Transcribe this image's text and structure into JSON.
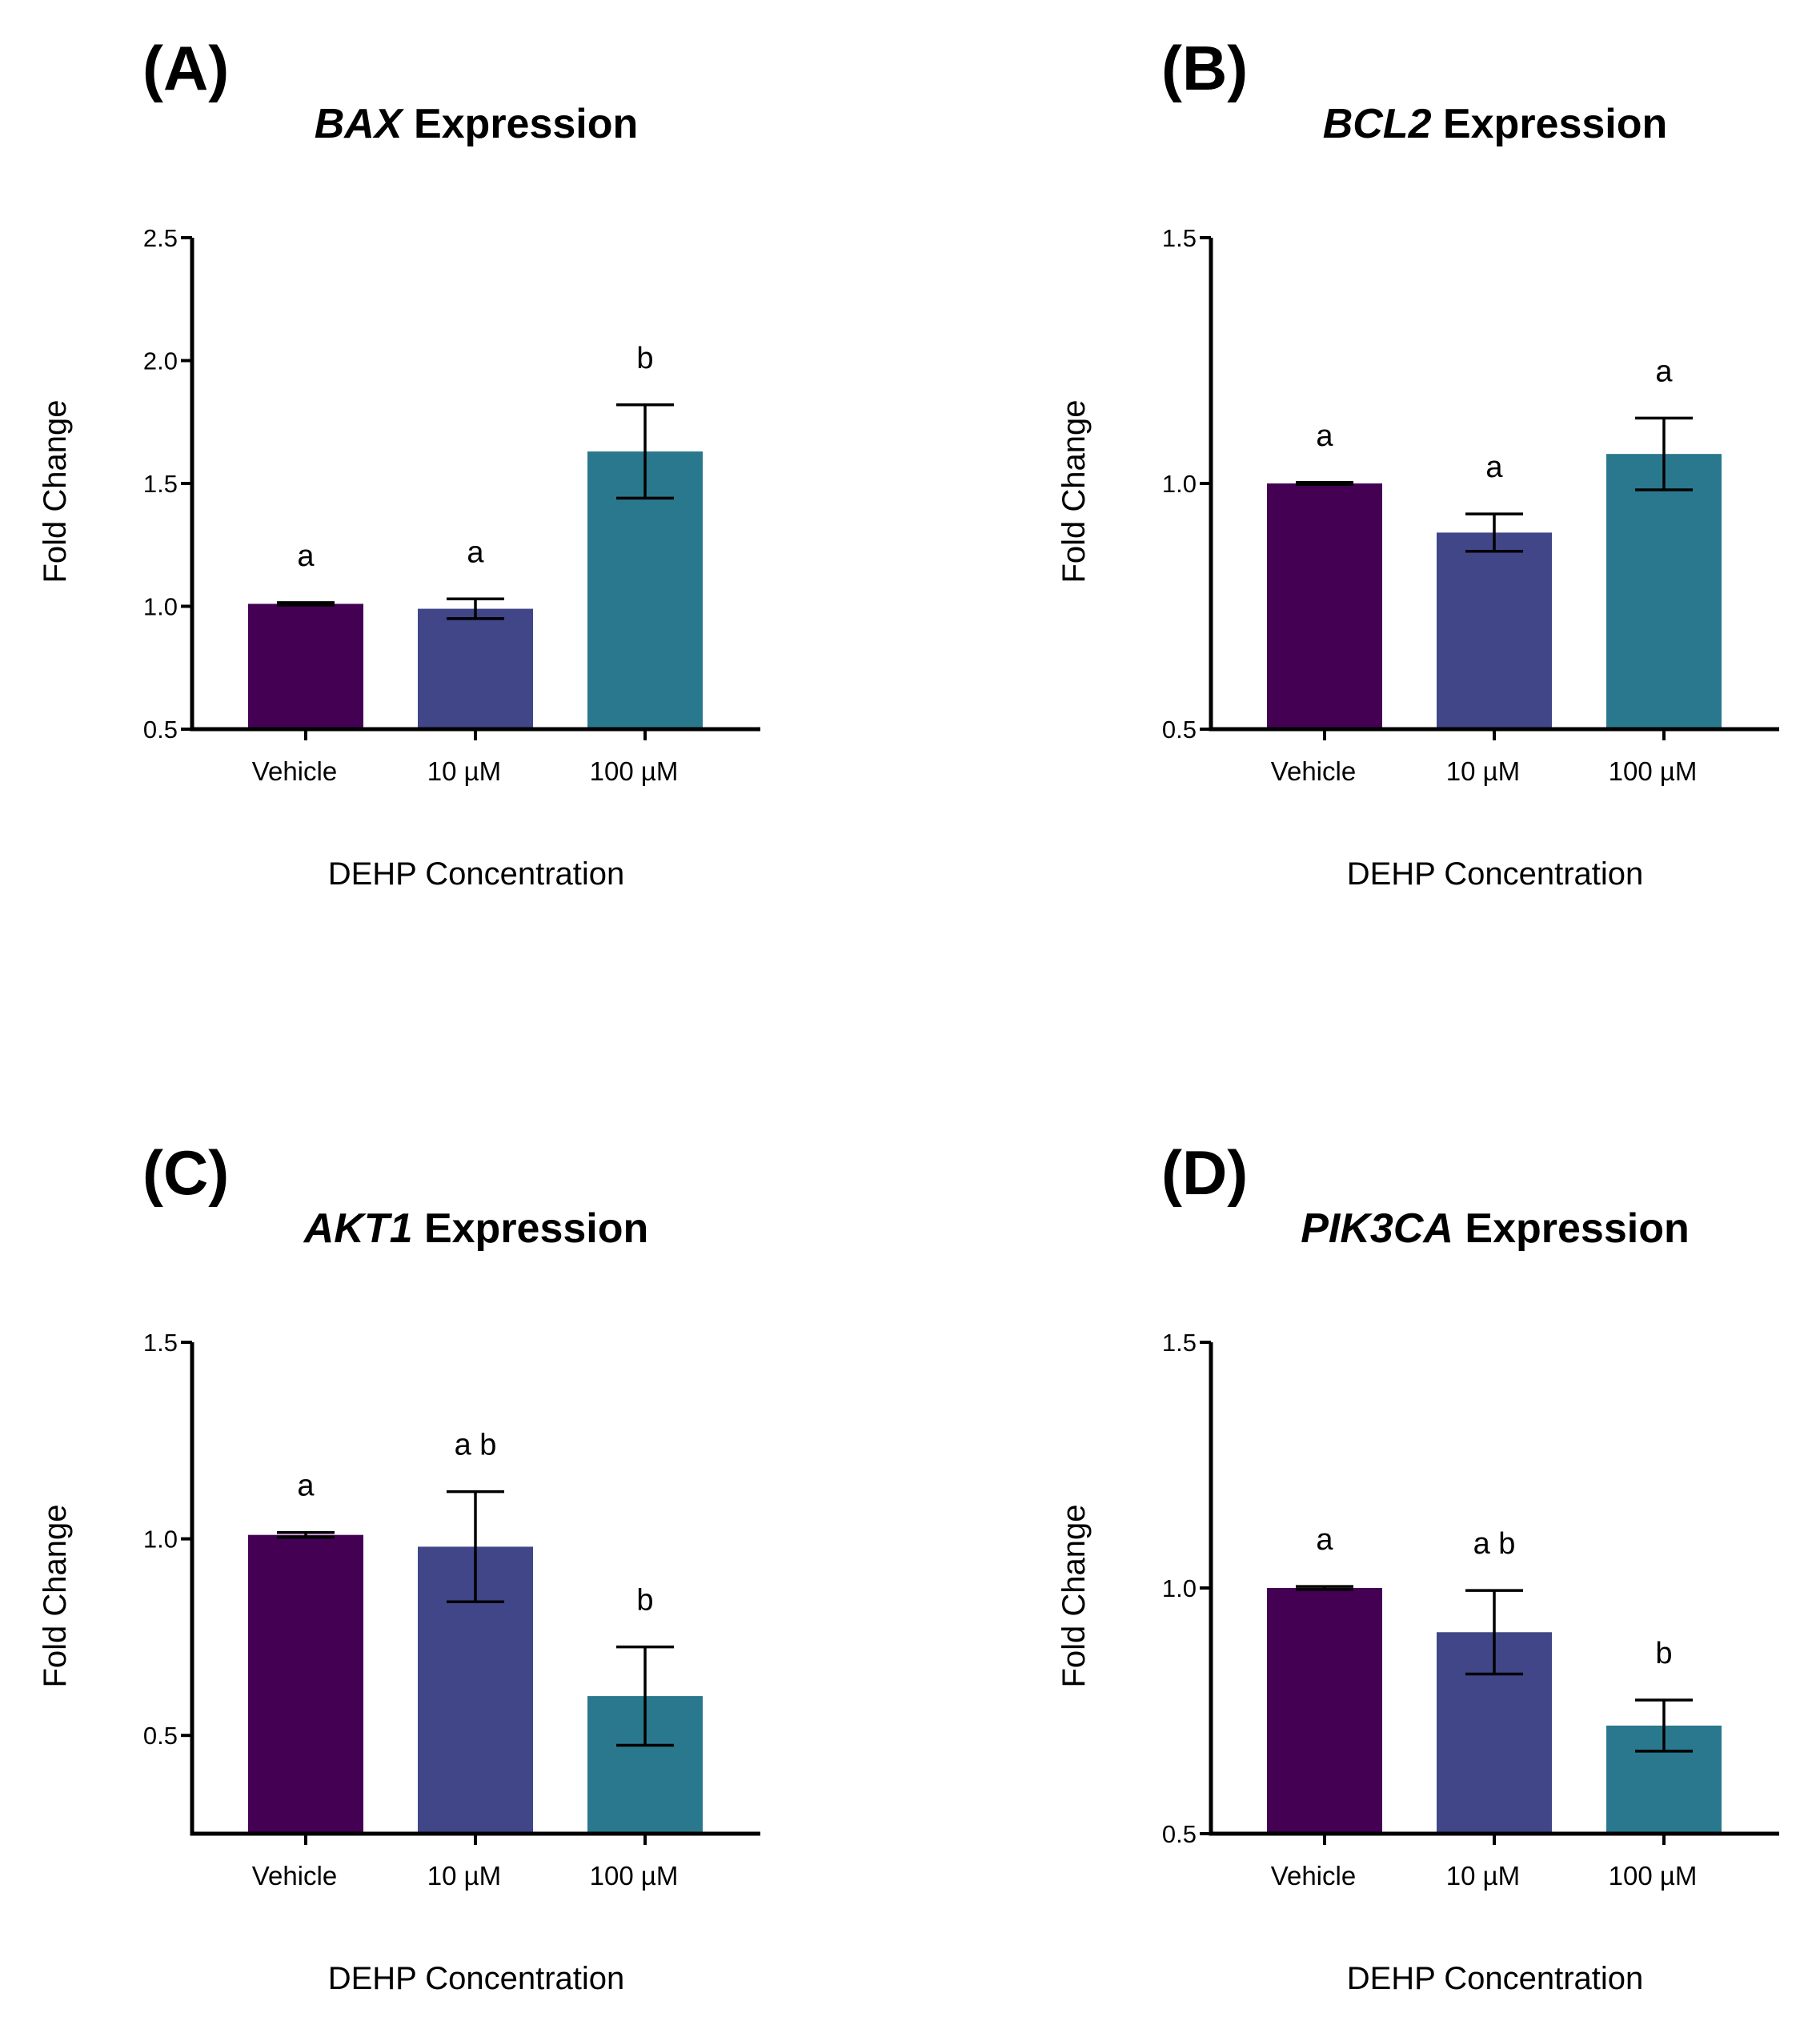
{
  "figure": {
    "xlabel_common": "DEHP Concentration",
    "ylabel_common": "Fold Change"
  },
  "colors": {
    "vehicle": "#440154",
    "low": "#404688",
    "high": "#2a788e"
  },
  "chart_data": [
    {
      "panel": "(A)",
      "type": "bar",
      "title_gene": "BAX",
      "title_rest": " Expression",
      "xlabel": "DEHP Concentration",
      "ylabel": "Fold Change",
      "categories": [
        "Vehicle",
        "10 µM",
        "100 µM"
      ],
      "values": [
        1.01,
        0.99,
        1.63
      ],
      "errors": [
        0.005,
        0.04,
        0.19
      ],
      "significance": [
        "a",
        "a",
        "b"
      ],
      "ylim": [
        0.5,
        2.5
      ],
      "yticks": [
        0.5,
        1.0,
        1.5,
        2.0,
        2.5
      ],
      "ytick_labels": [
        "0.5",
        "1.0",
        "1.5",
        "2.0",
        "2.5"
      ]
    },
    {
      "panel": "(B)",
      "type": "bar",
      "title_gene": "BCL2",
      "title_rest": " Expression",
      "xlabel": "DEHP Concentration",
      "ylabel": "Fold Change",
      "categories": [
        "Vehicle",
        "10 µM",
        "100 µM"
      ],
      "values": [
        1.0,
        0.9,
        1.06
      ],
      "errors": [
        0.002,
        0.038,
        0.073
      ],
      "significance": [
        "a",
        "a",
        "a"
      ],
      "ylim": [
        0.5,
        1.5
      ],
      "yticks": [
        0.5,
        1.0,
        1.5
      ],
      "ytick_labels": [
        "0.5",
        "1.0",
        "1.5"
      ]
    },
    {
      "panel": "(C)",
      "type": "bar",
      "title_gene": "AKT1",
      "title_rest": " Expression",
      "xlabel": "DEHP Concentration",
      "ylabel": "Fold Change",
      "categories": [
        "Vehicle",
        "10 µM",
        "100 µM"
      ],
      "values": [
        1.01,
        0.98,
        0.6
      ],
      "errors": [
        0.006,
        0.14,
        0.125
      ],
      "significance": [
        "a",
        "a b",
        "b"
      ],
      "ylim": [
        0.25,
        1.5
      ],
      "yticks": [
        0.5,
        1.0,
        1.5
      ],
      "ytick_labels": [
        "0.5",
        "1.0",
        "1.5"
      ]
    },
    {
      "panel": "(D)",
      "type": "bar",
      "title_gene": "PIK3CA",
      "title_rest": " Expression",
      "xlabel": "DEHP Concentration",
      "ylabel": "Fold Change",
      "categories": [
        "Vehicle",
        "10 µM",
        "100 µM"
      ],
      "values": [
        1.0,
        0.91,
        0.72
      ],
      "errors": [
        0.003,
        0.085,
        0.052
      ],
      "significance": [
        "a",
        "a b",
        "b"
      ],
      "ylim": [
        0.5,
        1.5
      ],
      "yticks": [
        0.5,
        1.0,
        1.5
      ],
      "ytick_labels": [
        "0.5",
        "1.0",
        "1.5"
      ]
    }
  ]
}
